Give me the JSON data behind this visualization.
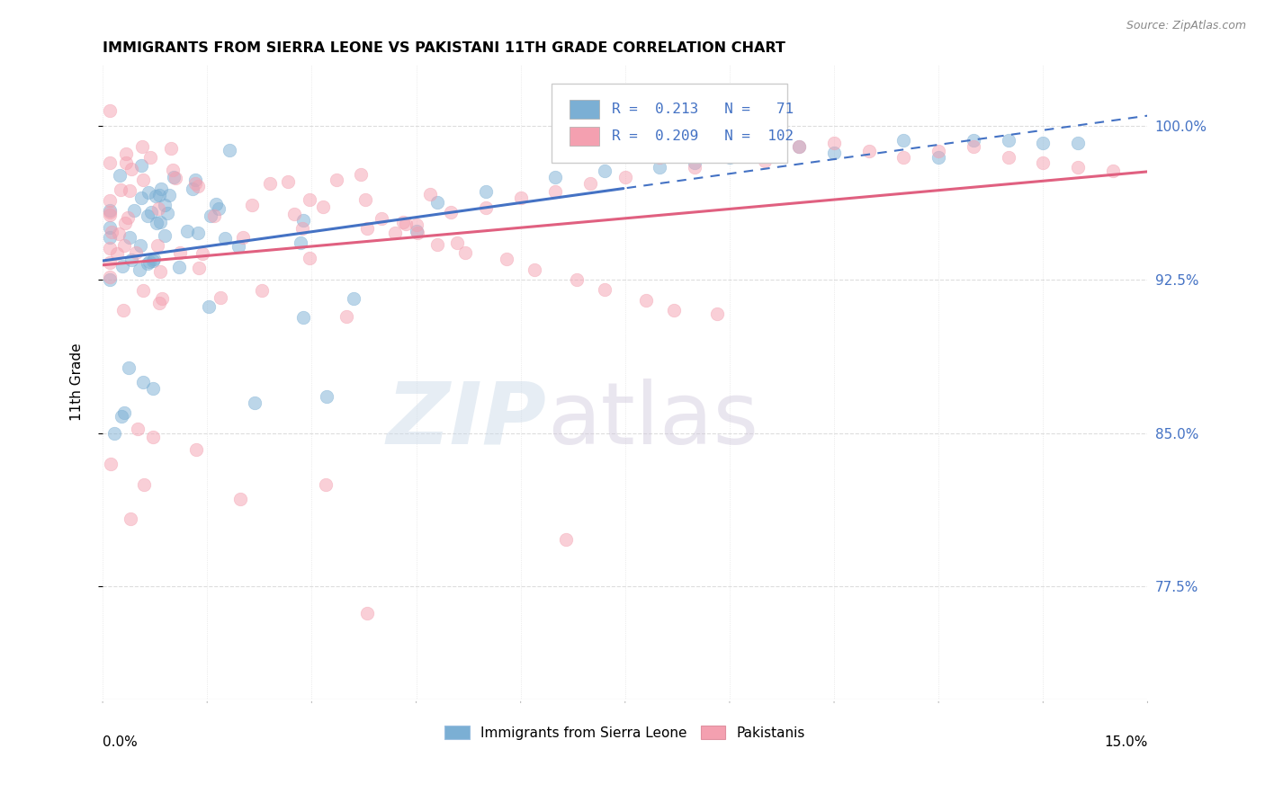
{
  "title": "IMMIGRANTS FROM SIERRA LEONE VS PAKISTANI 11TH GRADE CORRELATION CHART",
  "source": "Source: ZipAtlas.com",
  "ylabel": "11th Grade",
  "ytick_labels": [
    "100.0%",
    "92.5%",
    "85.0%",
    "77.5%"
  ],
  "ytick_values": [
    1.0,
    0.925,
    0.85,
    0.775
  ],
  "xmin": 0.0,
  "xmax": 0.15,
  "ymin": 0.72,
  "ymax": 1.03,
  "legend_label_blue": "Immigrants from Sierra Leone",
  "legend_label_pink": "Pakistanis",
  "legend_R_blue": "0.213",
  "legend_N_blue": "71",
  "legend_R_pink": "0.209",
  "legend_N_pink": "102",
  "blue_color": "#7BAFD4",
  "pink_color": "#F4A0B0",
  "blue_line_color": "#4472C4",
  "pink_line_color": "#E06080",
  "grid_color": "#DDDDDD",
  "solid_line_end": 0.075,
  "dashed_line_start": 0.075
}
